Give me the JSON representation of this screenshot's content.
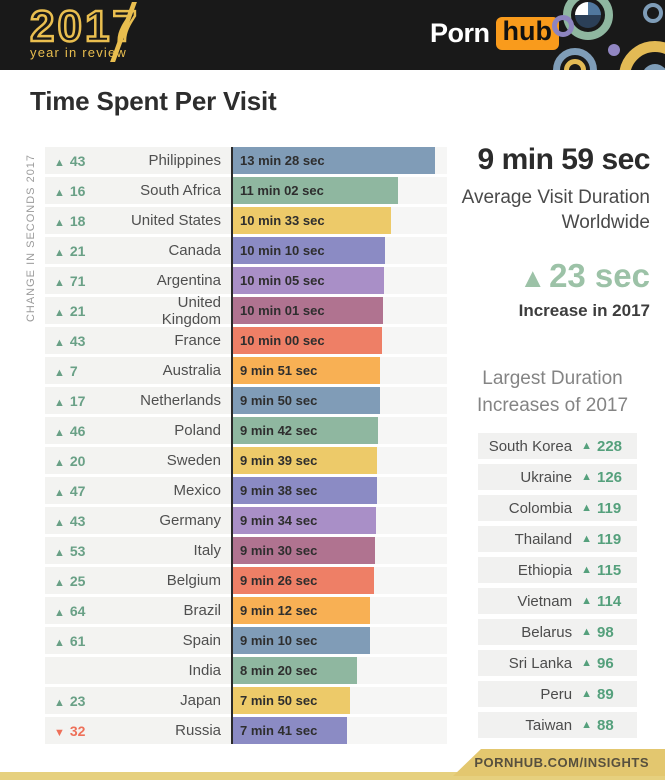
{
  "header": {
    "logo": {
      "year": "2017",
      "tagline": "year in review"
    },
    "brand": {
      "part1": "Porn",
      "part2": "hub"
    }
  },
  "page": {
    "title": "Time Spent Per Visit"
  },
  "chart_data": {
    "type": "bar",
    "title": "Time Spent Per Visit",
    "axis_label": "CHANGE IN SECONDS 2017",
    "value_unit": "visit duration (min:sec), change in seconds vs 2016",
    "max_seconds": 808,
    "rows": [
      {
        "country": "Philippines",
        "change": "43",
        "direction": "up",
        "duration": "13 min 28 sec",
        "seconds": 808,
        "color": "#809cb7"
      },
      {
        "country": "South Africa",
        "change": "16",
        "direction": "up",
        "duration": "11 min 02 sec",
        "seconds": 662,
        "color": "#8fb7a0"
      },
      {
        "country": "United States",
        "change": "18",
        "direction": "up",
        "duration": "10 min 33 sec",
        "seconds": 633,
        "color": "#edca69"
      },
      {
        "country": "Canada",
        "change": "21",
        "direction": "up",
        "duration": "10 min 10 sec",
        "seconds": 610,
        "color": "#8b8bc4"
      },
      {
        "country": "Argentina",
        "change": "71",
        "direction": "up",
        "duration": "10 min 05 sec",
        "seconds": 605,
        "color": "#a98fc7"
      },
      {
        "country": "United Kingdom",
        "change": "21",
        "direction": "up",
        "duration": "10 min 01 sec",
        "seconds": 601,
        "color": "#b07390"
      },
      {
        "country": "France",
        "change": "43",
        "direction": "up",
        "duration": "10 min 00 sec",
        "seconds": 600,
        "color": "#ee7f66"
      },
      {
        "country": "Australia",
        "change": "7",
        "direction": "up",
        "duration": "9 min 51 sec",
        "seconds": 591,
        "color": "#f8b054"
      },
      {
        "country": "Netherlands",
        "change": "17",
        "direction": "up",
        "duration": "9 min 50 sec",
        "seconds": 590,
        "color": "#809cb7"
      },
      {
        "country": "Poland",
        "change": "46",
        "direction": "up",
        "duration": "9 min 42 sec",
        "seconds": 582,
        "color": "#8fb7a0"
      },
      {
        "country": "Sweden",
        "change": "20",
        "direction": "up",
        "duration": "9 min 39 sec",
        "seconds": 579,
        "color": "#edca69"
      },
      {
        "country": "Mexico",
        "change": "47",
        "direction": "up",
        "duration": "9 min 38 sec",
        "seconds": 578,
        "color": "#8b8bc4"
      },
      {
        "country": "Germany",
        "change": "43",
        "direction": "up",
        "duration": "9 min 34 sec",
        "seconds": 574,
        "color": "#a98fc7"
      },
      {
        "country": "Italy",
        "change": "53",
        "direction": "up",
        "duration": "9 min 30 sec",
        "seconds": 570,
        "color": "#b07390"
      },
      {
        "country": "Belgium",
        "change": "25",
        "direction": "up",
        "duration": "9 min 26 sec",
        "seconds": 566,
        "color": "#ee7f66"
      },
      {
        "country": "Brazil",
        "change": "64",
        "direction": "up",
        "duration": "9 min 12 sec",
        "seconds": 552,
        "color": "#f8b054"
      },
      {
        "country": "Spain",
        "change": "61",
        "direction": "up",
        "duration": "9 min 10 sec",
        "seconds": 550,
        "color": "#809cb7"
      },
      {
        "country": "India",
        "change": "",
        "direction": "none",
        "duration": "8 min 20 sec",
        "seconds": 500,
        "color": "#8fb7a0"
      },
      {
        "country": "Japan",
        "change": "23",
        "direction": "up",
        "duration": "7 min 50 sec",
        "seconds": 470,
        "color": "#edca69"
      },
      {
        "country": "Russia",
        "change": "32",
        "direction": "down",
        "duration": "7 min 41 sec",
        "seconds": 461,
        "color": "#8b8bc4"
      }
    ]
  },
  "summary": {
    "value": "9 min 59 sec",
    "caption_line1": "Average Visit Duration",
    "caption_line2": "Worldwide",
    "increase_value": "23 sec",
    "increase_caption": "Increase in 2017"
  },
  "increases": {
    "title_line1": "Largest Duration",
    "title_line2": "Increases of 2017",
    "items": [
      {
        "country": "South Korea",
        "value": "228"
      },
      {
        "country": "Ukraine",
        "value": "126"
      },
      {
        "country": "Colombia",
        "value": "119"
      },
      {
        "country": "Thailand",
        "value": "119"
      },
      {
        "country": "Ethiopia",
        "value": "115"
      },
      {
        "country": "Vietnam",
        "value": "114"
      },
      {
        "country": "Belarus",
        "value": "98"
      },
      {
        "country": "Sri Lanka",
        "value": "96"
      },
      {
        "country": "Peru",
        "value": "89"
      },
      {
        "country": "Taiwan",
        "value": "88"
      }
    ]
  },
  "footer": {
    "link": "PORNHUB.COM/INSIGHTS"
  },
  "icons": {
    "up": "▲",
    "down": "▼"
  },
  "colors": {
    "header_bg": "#191919",
    "gold": "#e9be4f",
    "brand_orange": "#f99b1c",
    "accent_green": "#69a086",
    "accent_green_light": "#9cc2a7",
    "accent_green_strong": "#55a07c",
    "accent_red": "#ee7059"
  }
}
